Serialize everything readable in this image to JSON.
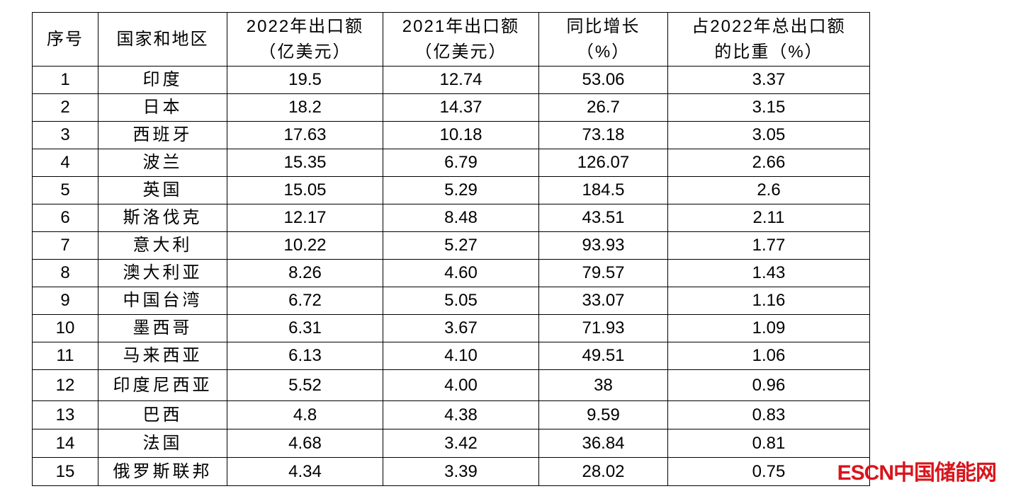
{
  "table": {
    "header": [
      [
        "序号"
      ],
      [
        "国家和地区"
      ],
      [
        "2022年出口额",
        "（亿美元）"
      ],
      [
        "2021年出口额",
        "（亿美元）"
      ],
      [
        "同比增长",
        "（%）"
      ],
      [
        "占2022年总出口额",
        "的比重（%）"
      ]
    ],
    "rows": [
      [
        "1",
        "印度",
        "19.5",
        "12.74",
        "53.06",
        "3.37"
      ],
      [
        "2",
        "日本",
        "18.2",
        "14.37",
        "26.7",
        "3.15"
      ],
      [
        "3",
        "西班牙",
        "17.63",
        "10.18",
        "73.18",
        "3.05"
      ],
      [
        "4",
        "波兰",
        "15.35",
        "6.79",
        "126.07",
        "2.66"
      ],
      [
        "5",
        "英国",
        "15.05",
        "5.29",
        "184.5",
        "2.6"
      ],
      [
        "6",
        "斯洛伐克",
        "12.17",
        "8.48",
        "43.51",
        "2.11"
      ],
      [
        "7",
        "意大利",
        "10.22",
        "5.27",
        "93.93",
        "1.77"
      ],
      [
        "8",
        "澳大利亚",
        "8.26",
        "4.60",
        "79.57",
        "1.43"
      ],
      [
        "9",
        "中国台湾",
        "6.72",
        "5.05",
        "33.07",
        "1.16"
      ],
      [
        "10",
        "墨西哥",
        "6.31",
        "3.67",
        "71.93",
        "1.09"
      ],
      [
        "11",
        "马来西亚",
        "6.13",
        "4.10",
        "49.51",
        "1.06"
      ],
      [
        "12",
        "印度尼西亚",
        "5.52",
        "4.00",
        "38",
        "0.96"
      ],
      [
        "13",
        "巴西",
        "4.8",
        "4.38",
        "9.59",
        "0.83"
      ],
      [
        "14",
        "法国",
        "4.68",
        "3.42",
        "36.84",
        "0.81"
      ],
      [
        "15",
        "俄罗斯联邦",
        "4.34",
        "3.39",
        "28.02",
        "0.75"
      ]
    ]
  },
  "watermark": {
    "brand": "ESCN",
    "site": "中国储能网"
  }
}
